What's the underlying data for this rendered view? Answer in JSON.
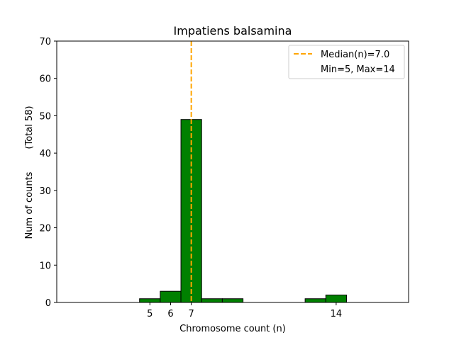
{
  "chart_data": {
    "type": "bar",
    "title": "Impatiens balsamina",
    "xlabel": "Chromosome count (n)",
    "ylabel": "Num of counts",
    "ylabel_note": "(Total 58)",
    "xlim": [
      0.5,
      17.5
    ],
    "ylim": [
      0,
      70
    ],
    "yticks": [
      0,
      10,
      20,
      30,
      40,
      50,
      60,
      70
    ],
    "xticks": [
      5,
      6,
      7,
      14
    ],
    "bins": [
      {
        "x0": 4.5,
        "x1": 5.5,
        "value": 1
      },
      {
        "x0": 5.5,
        "x1": 6.5,
        "value": 3
      },
      {
        "x0": 6.5,
        "x1": 7.5,
        "value": 49
      },
      {
        "x0": 7.5,
        "x1": 8.5,
        "value": 1
      },
      {
        "x0": 8.5,
        "x1": 9.5,
        "value": 1
      },
      {
        "x0": 12.5,
        "x1": 13.5,
        "value": 1
      },
      {
        "x0": 13.5,
        "x1": 14.5,
        "value": 2
      }
    ],
    "bar_color": "#008000",
    "median": 7.0,
    "median_color": "#FFA500",
    "legend": {
      "position": "top-right",
      "entries": [
        "Median(n)=7.0",
        "Min=5, Max=14"
      ]
    },
    "grid": false
  }
}
